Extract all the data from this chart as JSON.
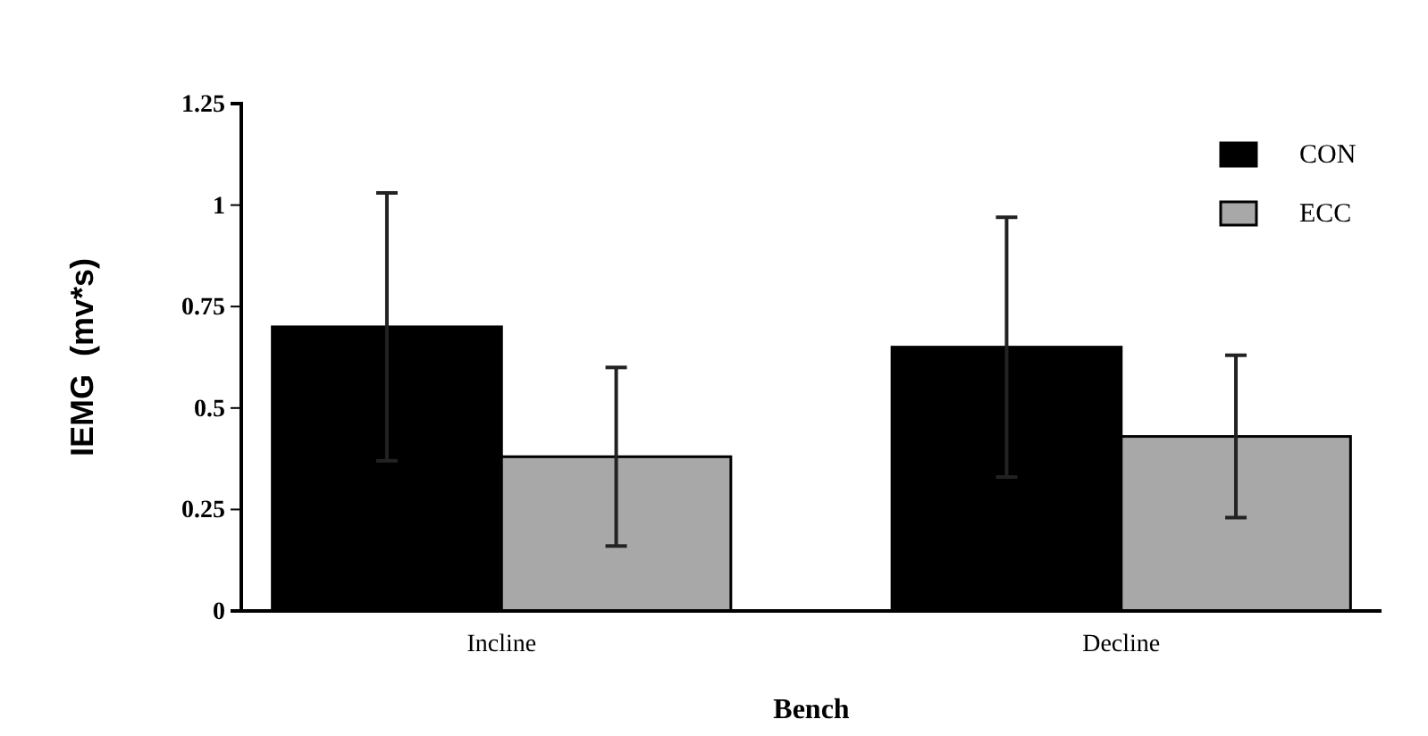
{
  "chart_data": {
    "type": "bar",
    "xlabel": "Bench",
    "ylabel": "IEMG  (mv*s)",
    "categories": [
      "Incline",
      "Decline"
    ],
    "series": [
      {
        "name": "CON",
        "color": "#000000",
        "values": [
          0.7,
          0.65
        ],
        "errors": [
          0.33,
          0.32
        ]
      },
      {
        "name": "ECC",
        "color": "#a8a8a8",
        "values": [
          0.38,
          0.43
        ],
        "errors": [
          0.22,
          0.2
        ]
      }
    ],
    "ylim": [
      0,
      1.25
    ],
    "yticks": [
      0,
      0.25,
      0.5,
      0.75,
      1,
      1.25
    ],
    "legend": "top right",
    "grid": false
  }
}
